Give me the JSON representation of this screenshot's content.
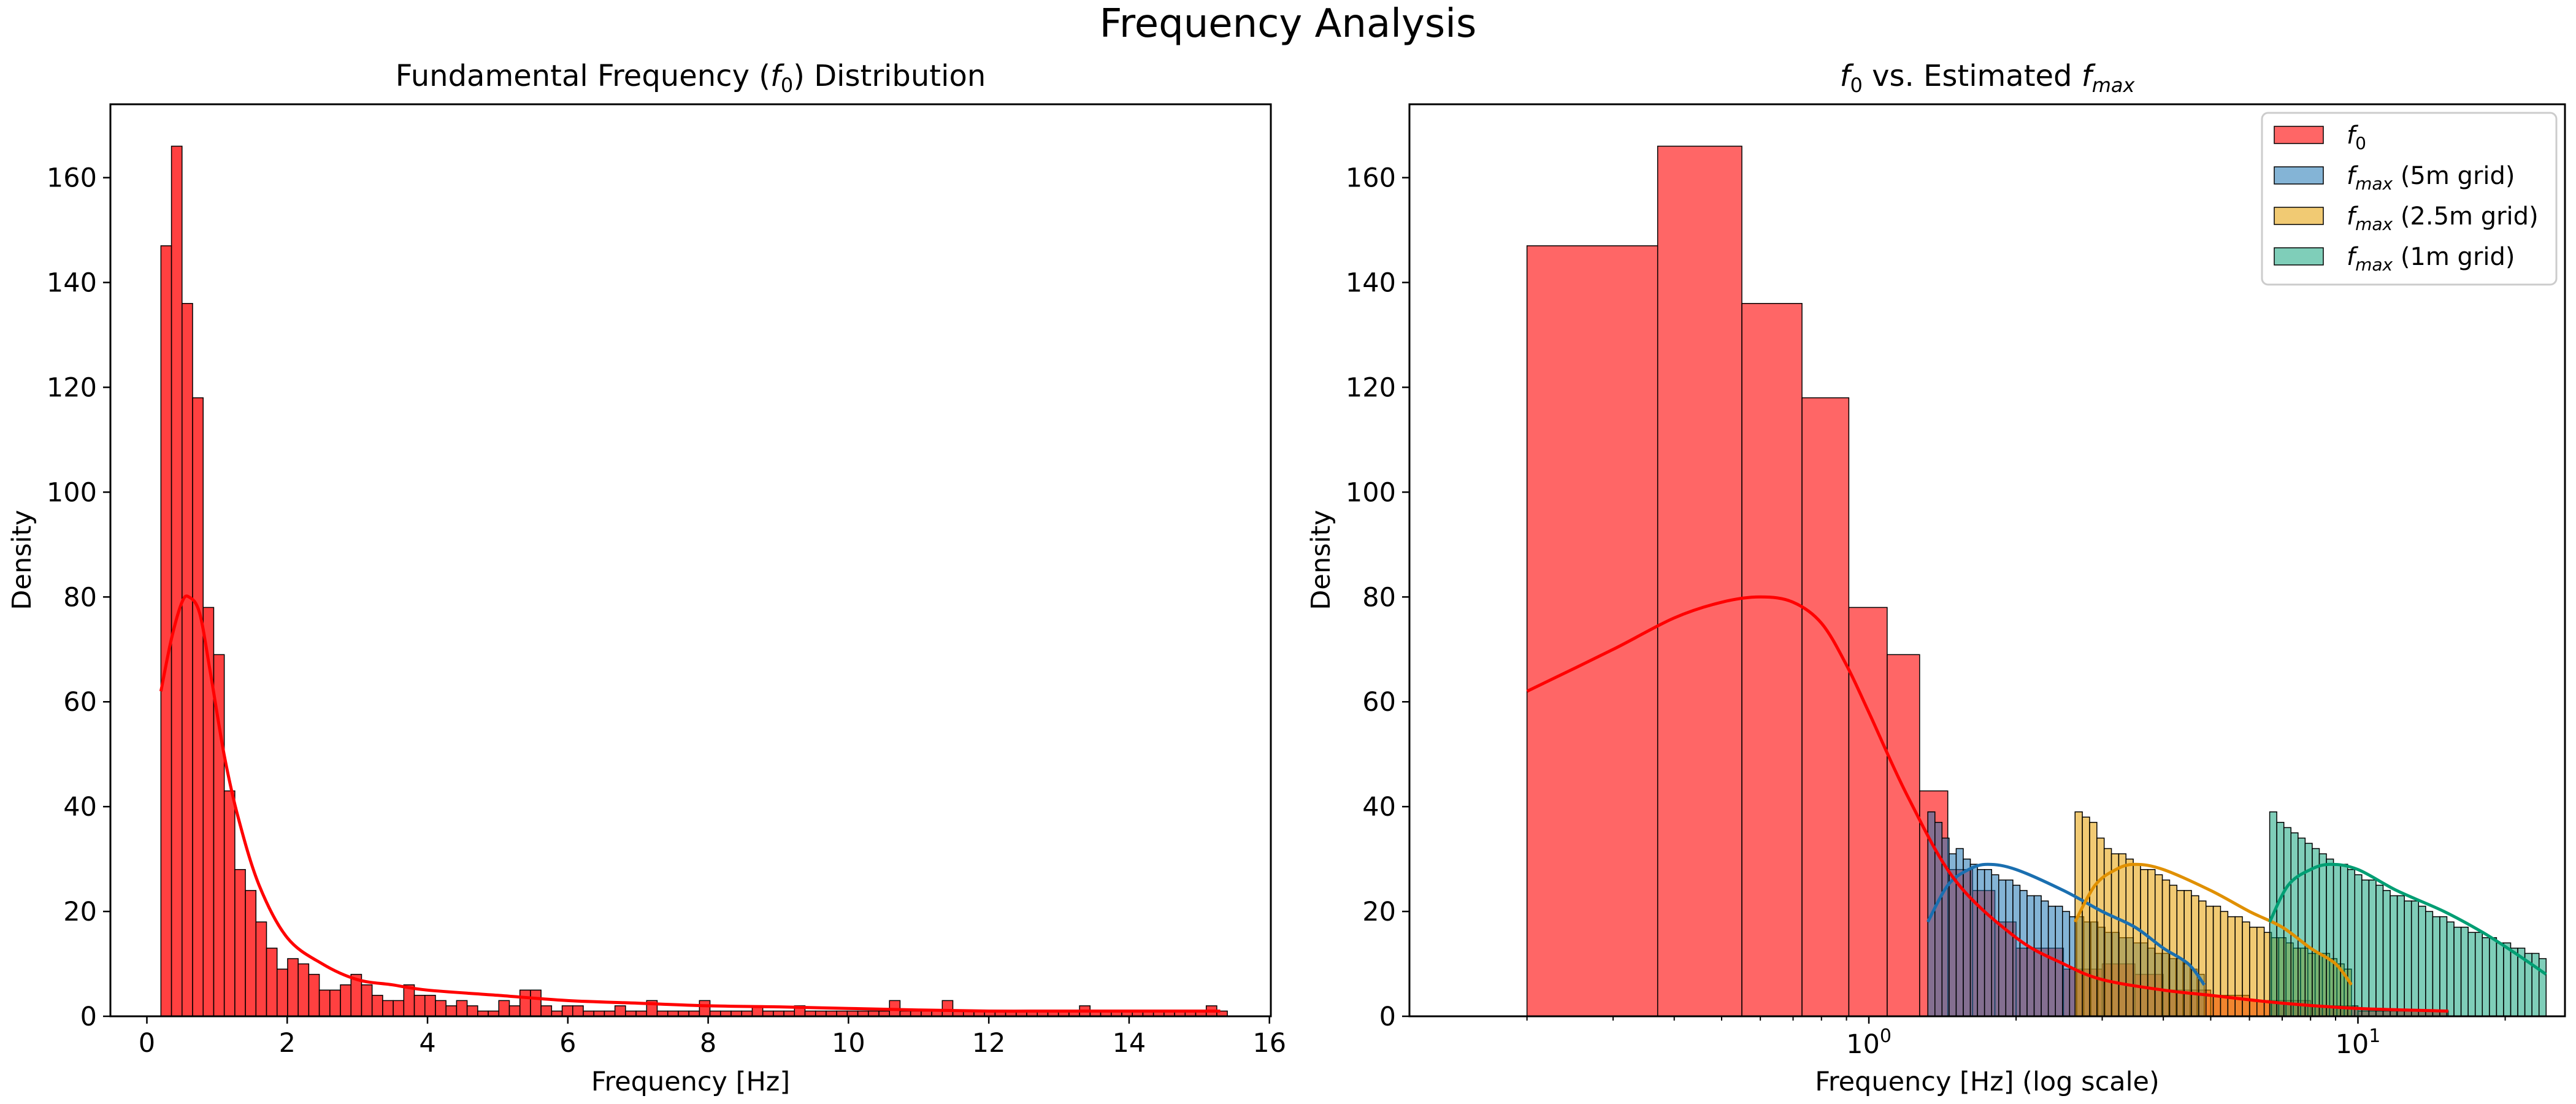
{
  "figure": {
    "title": "Frequency Analysis"
  },
  "chart_data": [
    {
      "type": "bar",
      "title_parts": {
        "pre": "Fundamental Frequency (",
        "f": "f",
        "sub": "0",
        "post": ") Distribution"
      },
      "xlabel": "Frequency [Hz]",
      "ylabel": "Density",
      "xlim": [
        -0.52,
        16.02
      ],
      "ylim": [
        0,
        174
      ],
      "xticks": [
        0,
        2,
        4,
        6,
        8,
        10,
        12,
        14,
        16
      ],
      "yticks": [
        0,
        20,
        40,
        60,
        80,
        100,
        120,
        140,
        160
      ],
      "series": [
        {
          "name": "f0",
          "color": "#ff0000",
          "bin_start": 0.2,
          "bin_width": 0.1505,
          "values": [
            147,
            166,
            136,
            118,
            78,
            69,
            43,
            28,
            24,
            18,
            13,
            9,
            11,
            10,
            8,
            5,
            5,
            6,
            8,
            6,
            4,
            3,
            3,
            6,
            4,
            4,
            3,
            2,
            3,
            2,
            1,
            1,
            3,
            2,
            5,
            5,
            2,
            1,
            2,
            2,
            1,
            1,
            1,
            2,
            1,
            1,
            3,
            1,
            1,
            1,
            1,
            3,
            1,
            1,
            1,
            1,
            2,
            1,
            1,
            1,
            2,
            1,
            1,
            1,
            1,
            1,
            1,
            1,
            1,
            3,
            1,
            1,
            1,
            1,
            3,
            1,
            1,
            1,
            1,
            1,
            1,
            1,
            1,
            1,
            1,
            1,
            1,
            2,
            1,
            1,
            1,
            1,
            1,
            1,
            1,
            1,
            1,
            1,
            1,
            2,
            1
          ],
          "kde_x": [
            0.2,
            0.35,
            0.5,
            0.6,
            0.75,
            0.9,
            1.1,
            1.3,
            1.6,
            2.0,
            2.5,
            3.0,
            3.5,
            4.0,
            5.0,
            6.0,
            7.0,
            8.0,
            9.0,
            10.0,
            11.0,
            12.0,
            13.0,
            14.0,
            15.3
          ],
          "kde_y": [
            62,
            72,
            79,
            80,
            77,
            66,
            50,
            38,
            25,
            15,
            10,
            7,
            6,
            5,
            4,
            3,
            2.5,
            2,
            1.8,
            1.5,
            1.2,
            1,
            1,
            1,
            1
          ]
        }
      ]
    },
    {
      "type": "bar",
      "title_parts": {
        "pre": "",
        "f": "f",
        "sub": "0",
        "mid": " vs. Estimated ",
        "f2": "f",
        "sub2": "max"
      },
      "xlabel": "Frequency [Hz] (log scale)",
      "ylabel": "Density",
      "xscale": "log",
      "xlim": [
        0.115,
        26.5
      ],
      "ylim": [
        0,
        174
      ],
      "xticks_major": [
        1,
        10
      ],
      "xtick_labels": [
        {
          "base": "10",
          "exp": "0"
        },
        {
          "base": "10",
          "exp": "1"
        }
      ],
      "yticks": [
        0,
        20,
        40,
        60,
        80,
        100,
        120,
        140,
        160
      ],
      "legend_position": "upper right",
      "series": [
        {
          "name": "f0",
          "legend": {
            "f": "f",
            "sub": "0",
            "suffix": ""
          },
          "color": "#ff0000",
          "alpha": 0.6,
          "edges": [
            0.2,
            0.37,
            0.55,
            0.73,
            0.91,
            1.09,
            1.27,
            1.45,
            1.63,
            1.81,
            2.0,
            2.5,
            3.0,
            3.5,
            4.0,
            5.0,
            6.0,
            8.0,
            10.0,
            12.0,
            15.3
          ],
          "values": [
            147,
            166,
            136,
            118,
            78,
            69,
            43,
            28,
            24,
            18,
            13,
            9,
            10,
            8,
            5,
            4,
            3,
            2,
            1,
            1
          ],
          "kde_x": [
            0.2,
            0.3,
            0.4,
            0.5,
            0.6,
            0.7,
            0.8,
            0.9,
            1.0,
            1.2,
            1.5,
            2.0,
            2.5,
            3.0,
            4.0,
            5.0,
            7.0,
            10.0,
            15.3
          ],
          "kde_y": [
            62,
            70,
            76,
            79,
            80,
            79,
            75,
            67,
            58,
            42,
            26,
            15,
            10,
            7,
            5,
            4,
            2.5,
            1.5,
            1
          ]
        },
        {
          "name": "fmax (5m grid)",
          "legend": {
            "f": "f",
            "sub": "max",
            "suffix": " (5m grid)"
          },
          "color": "#1f77b4",
          "kde_color": "#1a6fb0",
          "alpha": 0.55,
          "x_start": 1.32,
          "x_end": 4.85,
          "values": [
            39,
            37,
            34,
            31,
            32,
            30,
            29,
            28,
            28,
            27,
            26,
            26,
            25,
            24,
            23,
            23,
            22,
            21,
            21,
            20,
            19,
            19,
            18,
            18,
            17,
            16,
            16,
            15,
            15,
            14,
            14,
            13,
            12,
            12,
            11,
            11,
            10,
            9,
            8
          ],
          "kde_x": [
            1.32,
            1.45,
            1.6,
            1.75,
            2.0,
            2.5,
            3.0,
            3.5,
            4.0,
            4.5,
            4.85
          ],
          "kde_y": [
            18,
            25,
            28,
            29,
            28,
            24,
            20,
            17,
            13,
            10,
            6
          ]
        },
        {
          "name": "fmax (2.5m grid)",
          "legend": {
            "f": "f",
            "sub": "max",
            "suffix": " (2.5m grid)"
          },
          "color": "#e69f00",
          "kde_color": "#e09000",
          "alpha": 0.55,
          "x_start": 2.64,
          "x_end": 9.7,
          "values": [
            39,
            38,
            37,
            34,
            32,
            31,
            31,
            30,
            29,
            28,
            28,
            27,
            26,
            25,
            24,
            24,
            23,
            22,
            21,
            21,
            20,
            19,
            19,
            18,
            17,
            17,
            16,
            15,
            15,
            14,
            13,
            13,
            12,
            12,
            12,
            11,
            10,
            9
          ],
          "kde_x": [
            2.64,
            2.9,
            3.2,
            3.5,
            4.0,
            5.0,
            6.0,
            7.0,
            8.0,
            9.0,
            9.7
          ],
          "kde_y": [
            18,
            25,
            28,
            29,
            28,
            24,
            20,
            17,
            13,
            10,
            6
          ]
        },
        {
          "name": "fmax (1m grid)",
          "legend": {
            "f": "f",
            "sub": "max",
            "suffix": " (1m grid)"
          },
          "color": "#009e73",
          "kde_color": "#009e73",
          "alpha": 0.5,
          "x_start": 6.6,
          "x_end": 24.25,
          "values": [
            39,
            37,
            36,
            35,
            34,
            33,
            32,
            31,
            30,
            29,
            29,
            28,
            27,
            26,
            26,
            25,
            24,
            23,
            23,
            22,
            22,
            21,
            20,
            19,
            19,
            18,
            17,
            17,
            16,
            16,
            15,
            15,
            14,
            14,
            13,
            13,
            12,
            12,
            11
          ],
          "kde_x": [
            6.6,
            7.2,
            8.0,
            8.8,
            10.0,
            12.0,
            15.0,
            18.0,
            21.0,
            24.25
          ],
          "kde_y": [
            18,
            25,
            28,
            29,
            28,
            24,
            20,
            16,
            12,
            8
          ]
        }
      ]
    }
  ]
}
